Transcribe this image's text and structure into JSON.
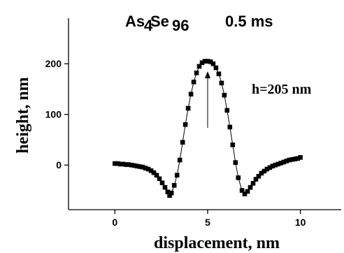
{
  "chart_data": {
    "type": "scatter",
    "title_main": "As",
    "title_sub1": "4",
    "title_mid": "Se",
    "title_sub2": "96",
    "title_time": "0.5 ms",
    "xlabel": "displacement, nm",
    "ylabel": "height, nm",
    "annotation": "h=205 nm",
    "xlim": [
      -2.5,
      12.2
    ],
    "ylim": [
      -88,
      290
    ],
    "x_ticks": [
      0,
      5,
      10
    ],
    "y_ticks": [
      0,
      100,
      200
    ],
    "x_tick_labels": [
      "0",
      "5",
      "10"
    ],
    "y_tick_labels": [
      "0",
      "100",
      "200"
    ],
    "series": [
      {
        "marker": "square",
        "color": "#000000",
        "x": [
          0.0,
          0.15,
          0.3,
          0.45,
          0.6,
          0.75,
          0.9,
          1.05,
          1.2,
          1.35,
          1.5,
          1.65,
          1.8,
          1.95,
          2.1,
          2.25,
          2.4,
          2.55,
          2.7,
          2.85,
          2.95,
          3.05,
          3.2,
          3.35,
          3.5,
          3.65,
          3.8,
          3.95,
          4.1,
          4.25,
          4.4,
          4.55,
          4.7,
          4.85,
          5.0,
          5.15,
          5.3,
          5.45,
          5.6,
          5.75,
          5.9,
          6.05,
          6.2,
          6.35,
          6.5,
          6.65,
          6.85,
          7.0,
          7.15,
          7.3,
          7.45,
          7.6,
          7.75,
          7.9,
          8.05,
          8.2,
          8.35,
          8.5,
          8.65,
          8.8,
          8.95,
          9.1,
          9.25,
          9.4,
          9.55,
          9.7,
          9.85,
          10.0
        ],
        "y": [
          3,
          3,
          2,
          2,
          1,
          1,
          0,
          -1,
          -2,
          -3,
          -4,
          -6,
          -8,
          -11,
          -15,
          -20,
          -27,
          -35,
          -44,
          -53,
          -60,
          -55,
          -40,
          -20,
          10,
          45,
          80,
          112,
          140,
          164,
          182,
          195,
          202,
          205,
          205,
          204,
          200,
          192,
          180,
          162,
          138,
          108,
          75,
          40,
          5,
          -25,
          -50,
          -57,
          -52,
          -44,
          -36,
          -28,
          -22,
          -16,
          -12,
          -8,
          -5,
          -2,
          0,
          2,
          4,
          6,
          8,
          10,
          11,
          12,
          13,
          15
        ]
      }
    ]
  }
}
